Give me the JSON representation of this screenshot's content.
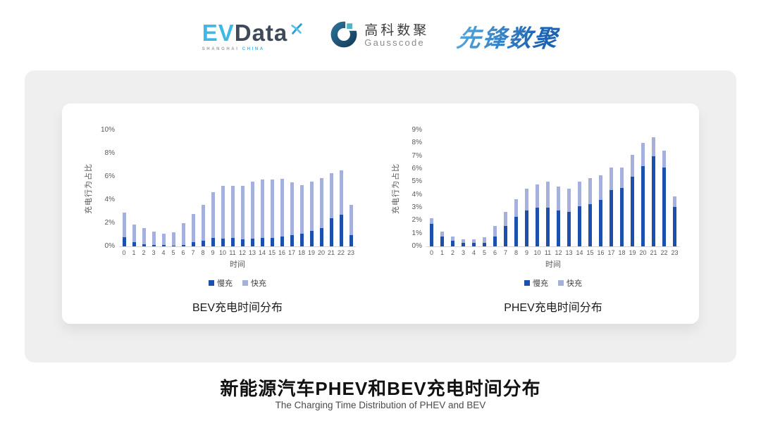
{
  "header": {
    "logos": {
      "evdata": {
        "ev": "EV",
        "data": "Data",
        "sub_left": "SHANGHAI",
        "sub_right": "CHINA"
      },
      "gausscode": {
        "cn": "高科数聚",
        "en": "Gausscode"
      },
      "xianfeng": {
        "text": "先锋数聚"
      }
    }
  },
  "colors": {
    "slow_charge": "#1d4fae",
    "fast_charge": "#a6b0dd",
    "panel_gray": "#efeff0",
    "axis_text": "#595959",
    "brand_cyan": "#3fb9e4",
    "brand_slate": "#3e4a5a",
    "brand_blue": "#2a7ec4"
  },
  "chart_data": [
    {
      "type": "bar",
      "stacked": true,
      "name": "BEV",
      "title": "BEV充电时间分布",
      "xlabel": "时间",
      "ylabel": "充电行为占比",
      "ylim": [
        0,
        10
      ],
      "ytick_step": 2,
      "grid": false,
      "legend_position": "bottom",
      "categories": [
        "0",
        "1",
        "2",
        "3",
        "4",
        "5",
        "6",
        "7",
        "8",
        "9",
        "10",
        "11",
        "12",
        "13",
        "14",
        "15",
        "16",
        "17",
        "18",
        "19",
        "20",
        "21",
        "22",
        "23"
      ],
      "series": [
        {
          "name": "慢充",
          "color": "#1d4fae",
          "values": [
            0.8,
            0.35,
            0.2,
            0.12,
            0.1,
            0.08,
            0.15,
            0.35,
            0.5,
            0.7,
            0.65,
            0.7,
            0.6,
            0.65,
            0.7,
            0.7,
            0.85,
            1.0,
            1.1,
            1.35,
            1.6,
            2.4,
            2.75,
            1.0
          ]
        },
        {
          "name": "快充",
          "color": "#a6b0dd",
          "values": [
            2.1,
            1.55,
            1.35,
            1.13,
            1.0,
            1.12,
            1.85,
            2.45,
            3.1,
            3.95,
            4.55,
            4.5,
            4.6,
            4.95,
            5.05,
            5.05,
            4.95,
            4.5,
            4.2,
            4.2,
            4.3,
            3.9,
            3.8,
            2.6
          ]
        }
      ]
    },
    {
      "type": "bar",
      "stacked": true,
      "name": "PHEV",
      "title": "PHEV充电时间分布",
      "xlabel": "时间",
      "ylabel": "充电行为占比",
      "ylim": [
        0,
        9
      ],
      "ytick_step": 1,
      "grid": false,
      "legend_position": "bottom",
      "categories": [
        "0",
        "1",
        "2",
        "3",
        "4",
        "5",
        "6",
        "7",
        "8",
        "9",
        "10",
        "11",
        "12",
        "13",
        "14",
        "15",
        "16",
        "17",
        "18",
        "19",
        "20",
        "21",
        "22",
        "23"
      ],
      "series": [
        {
          "name": "慢充",
          "color": "#1d4fae",
          "values": [
            1.75,
            0.75,
            0.45,
            0.25,
            0.25,
            0.3,
            0.75,
            1.6,
            2.3,
            2.8,
            3.0,
            3.0,
            2.8,
            2.65,
            3.1,
            3.3,
            3.6,
            4.35,
            4.55,
            5.4,
            6.2,
            7.0,
            6.1,
            3.05
          ]
        },
        {
          "name": "快充",
          "color": "#a6b0dd",
          "values": [
            0.45,
            0.4,
            0.3,
            0.3,
            0.3,
            0.4,
            0.85,
            1.1,
            1.35,
            1.7,
            1.8,
            2.0,
            1.85,
            1.85,
            1.9,
            2.0,
            1.9,
            1.75,
            1.55,
            1.7,
            1.8,
            1.45,
            1.3,
            0.8
          ]
        }
      ]
    }
  ],
  "footer": {
    "title": "新能源汽车PHEV和BEV充电时间分布",
    "subtitle": "The Charging Time Distribution of PHEV and BEV"
  }
}
